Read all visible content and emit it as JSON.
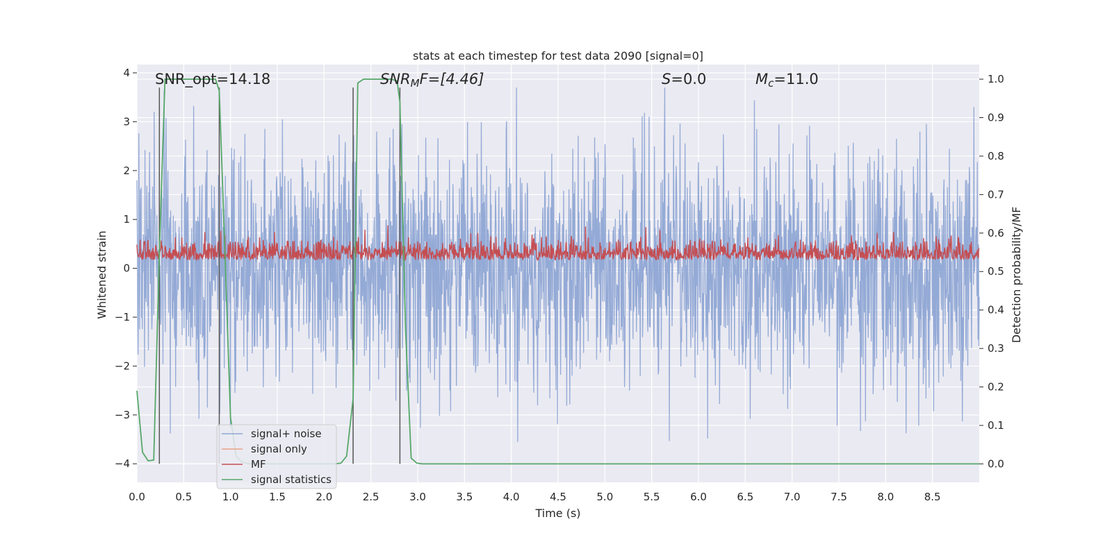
{
  "chart_data": {
    "type": "line",
    "title": "stats at each timestep for test data 2090 [signal=0]",
    "xlabel": "Time (s)",
    "ylabel": "Whitened strain",
    "ylabel_right": "Detection probability/MF",
    "xlim": [
      0.0,
      9.0
    ],
    "ylim": [
      -4.38,
      4.17
    ],
    "ylim_right": [
      -0.048,
      1.038
    ],
    "x_ticks": [
      "0.0",
      "0.5",
      "1.0",
      "1.5",
      "2.0",
      "2.5",
      "3.0",
      "3.5",
      "4.0",
      "4.5",
      "5.0",
      "5.5",
      "6.0",
      "6.5",
      "7.0",
      "7.5",
      "8.0",
      "8.5"
    ],
    "y_ticks": [
      "4",
      "3",
      "2",
      "1",
      "0",
      "−1",
      "−2",
      "−3",
      "−4"
    ],
    "y_right_ticks": [
      "1.0",
      "0.9",
      "0.8",
      "0.7",
      "0.6",
      "0.5",
      "0.4",
      "0.3",
      "0.2",
      "0.1",
      "0.0"
    ],
    "grid": true,
    "legend_position": "lower-left",
    "annotations": {
      "snr_opt": "SNR_opt=14.18",
      "snr_mf_italic": "SNR",
      "snr_mf_sub": "M",
      "snr_mf_rest": "F=[4.46]",
      "s_italic": "S",
      "s_rest": "=0.0",
      "mc_italic": "M",
      "mc_sub": "c",
      "mc_rest": "=11.0"
    },
    "vertical_markers_x": [
      0.24,
      0.88,
      2.31,
      2.81
    ],
    "series": [
      {
        "name": "signal+ noise",
        "color": "#8fa6d4",
        "axis": "left",
        "description_envelope": {
          "typical_high": 2.0,
          "typical_low": -2.0,
          "max": 3.7,
          "min": -3.55
        }
      },
      {
        "name": "signal only",
        "color": "#e9a283",
        "axis": "left",
        "x": [
          0.0,
          9.0
        ],
        "y": [
          0.0,
          0.0
        ]
      },
      {
        "name": "MF",
        "color": "#c44e52",
        "axis": "right",
        "description_envelope": {
          "center": 0.53,
          "low": 0.5,
          "high": 0.62
        }
      },
      {
        "name": "signal statistics",
        "color": "#55a868",
        "axis": "right",
        "x": [
          0.0,
          0.06,
          0.12,
          0.18,
          0.24,
          0.3,
          0.36,
          0.42,
          0.48,
          0.54,
          0.6,
          0.66,
          0.72,
          0.78,
          0.84,
          0.88,
          0.94,
          1.0,
          1.06,
          1.12,
          1.2,
          1.4,
          1.6,
          1.8,
          2.0,
          2.12,
          2.18,
          2.24,
          2.31,
          2.36,
          2.42,
          2.48,
          2.54,
          2.6,
          2.66,
          2.72,
          2.78,
          2.81,
          2.87,
          2.93,
          2.99,
          3.05,
          3.5,
          4.0,
          5.0,
          6.0,
          7.0,
          8.0,
          9.0
        ],
        "y": [
          0.19,
          0.03,
          0.008,
          0.01,
          0.55,
          1.0,
          1.0,
          1.0,
          1.0,
          1.0,
          1.0,
          1.0,
          1.0,
          1.0,
          1.0,
          0.97,
          0.55,
          0.12,
          0.02,
          0.005,
          0.0,
          0.0,
          0.0,
          0.0,
          0.0,
          0.0,
          0.002,
          0.02,
          0.17,
          0.99,
          1.0,
          1.0,
          1.0,
          1.0,
          1.0,
          1.0,
          0.995,
          0.94,
          0.35,
          0.015,
          0.002,
          0.0,
          0.0,
          0.0,
          0.0,
          0.0,
          0.0,
          0.0,
          0.0
        ]
      }
    ]
  }
}
